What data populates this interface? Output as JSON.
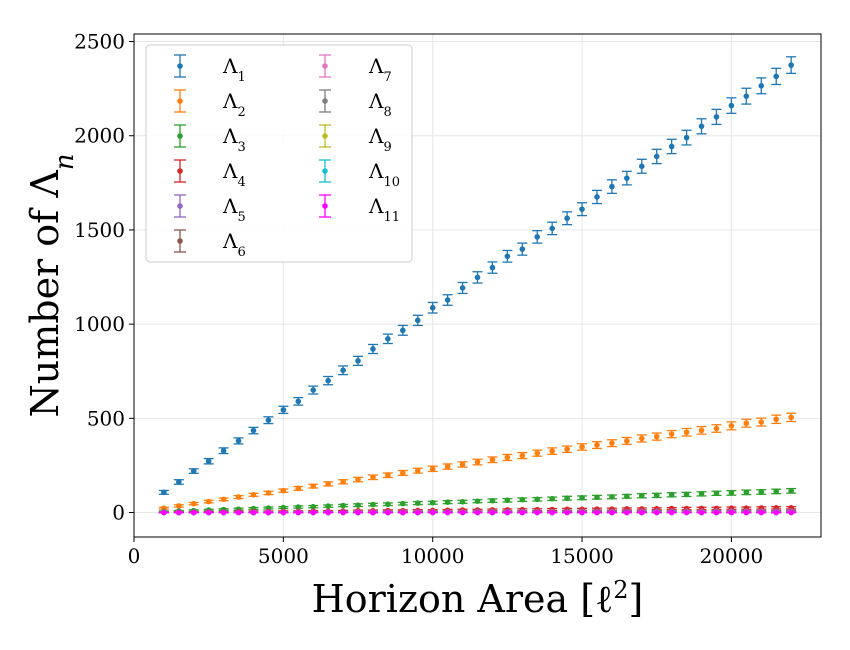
{
  "chart_data": {
    "type": "scatter",
    "xlabel": "Horizon Area [ℓ²]",
    "ylabel": "Number of Λn",
    "xlim": [
      0,
      23000
    ],
    "ylim": [
      -130,
      2540
    ],
    "xticks": [
      "0",
      "5000",
      "10000",
      "15000",
      "20000"
    ],
    "yticks": [
      "0",
      "500",
      "1000",
      "1500",
      "2000",
      "2500"
    ],
    "grid": true,
    "legend_position": "top-left",
    "x": [
      1000,
      1500,
      2000,
      2500,
      3000,
      3500,
      4000,
      4500,
      5000,
      5500,
      6000,
      6500,
      7000,
      7500,
      8000,
      8500,
      9000,
      9500,
      10000,
      10500,
      11000,
      11500,
      12000,
      12500,
      13000,
      13500,
      14000,
      14500,
      15000,
      15500,
      16000,
      16500,
      17000,
      17500,
      18000,
      18500,
      19000,
      19500,
      20000,
      20500,
      21000,
      21500,
      22000
    ],
    "series": [
      {
        "name": "Λ1",
        "color": "#1f77b4",
        "values": [
          107,
          162,
          220,
          272,
          328,
          380,
          435,
          490,
          545,
          590,
          650,
          700,
          755,
          805,
          868,
          922,
          967,
          1020,
          1087,
          1128,
          1192,
          1248,
          1300,
          1360,
          1398,
          1463,
          1508,
          1562,
          1610,
          1675,
          1730,
          1775,
          1838,
          1890,
          1943,
          1990,
          2050,
          2100,
          2160,
          2210,
          2265,
          2315,
          2375
        ],
        "errors": [
          10,
          12,
          12,
          14,
          15,
          16,
          17,
          18,
          19,
          20,
          21,
          22,
          23,
          24,
          24,
          25,
          26,
          27,
          28,
          28,
          29,
          30,
          30,
          31,
          32,
          33,
          33,
          34,
          34,
          35,
          36,
          36,
          37,
          38,
          38,
          39,
          40,
          40,
          41,
          42,
          42,
          43,
          44
        ]
      },
      {
        "name": "Λ2",
        "color": "#ff7f0e",
        "values": [
          23,
          35,
          47,
          58,
          70,
          82,
          94,
          104,
          116,
          128,
          140,
          152,
          163,
          175,
          187,
          198,
          210,
          222,
          232,
          244,
          255,
          268,
          280,
          292,
          302,
          315,
          326,
          336,
          348,
          358,
          368,
          380,
          393,
          403,
          416,
          426,
          436,
          446,
          460,
          474,
          480,
          495,
          505
        ],
        "errors": [
          5,
          6,
          6,
          7,
          7,
          8,
          8,
          9,
          9,
          10,
          10,
          11,
          11,
          12,
          12,
          12,
          13,
          13,
          14,
          14,
          14,
          15,
          15,
          16,
          16,
          16,
          17,
          17,
          17,
          18,
          18,
          18,
          19,
          19,
          19,
          20,
          20,
          20,
          21,
          21,
          21,
          22,
          22
        ]
      },
      {
        "name": "Λ3",
        "color": "#2ca02c",
        "values": [
          5,
          8,
          10,
          13,
          16,
          18,
          21,
          24,
          26,
          29,
          31,
          34,
          37,
          39,
          42,
          44,
          47,
          50,
          52,
          55,
          57,
          60,
          63,
          65,
          68,
          70,
          73,
          76,
          78,
          81,
          83,
          86,
          89,
          91,
          94,
          96,
          99,
          102,
          104,
          107,
          109,
          112,
          115
        ],
        "errors": [
          3,
          3,
          4,
          4,
          4,
          5,
          5,
          5,
          5,
          6,
          6,
          6,
          6,
          7,
          7,
          7,
          7,
          8,
          8,
          8,
          8,
          8,
          9,
          9,
          9,
          9,
          9,
          10,
          10,
          10,
          10,
          10,
          11,
          11,
          11,
          11,
          11,
          11,
          12,
          12,
          12,
          12,
          12
        ]
      },
      {
        "name": "Λ4",
        "color": "#d62728",
        "values": [
          1,
          2,
          2,
          3,
          3,
          4,
          5,
          5,
          6,
          6,
          7,
          7,
          8,
          9,
          9,
          10,
          10,
          11,
          11,
          12,
          13,
          13,
          14,
          14,
          15,
          15,
          16,
          17,
          17,
          18,
          18,
          19,
          19,
          20,
          21,
          21,
          22,
          22,
          23,
          23,
          24,
          25,
          25
        ],
        "errors": [
          2,
          2,
          2,
          2,
          2,
          3,
          3,
          3,
          3,
          3,
          3,
          3,
          3,
          4,
          4,
          4,
          4,
          4,
          4,
          4,
          4,
          4,
          4,
          5,
          5,
          5,
          5,
          5,
          5,
          5,
          5,
          5,
          5,
          5,
          5,
          6,
          6,
          6,
          6,
          6,
          6,
          6,
          6
        ]
      },
      {
        "name": "Λ5",
        "color": "#9467bd",
        "values": [
          0,
          1,
          1,
          1,
          1,
          1,
          2,
          2,
          2,
          2,
          2,
          3,
          3,
          3,
          3,
          3,
          4,
          4,
          4,
          4,
          4,
          5,
          5,
          5,
          5,
          5,
          5,
          6,
          6,
          6,
          6,
          6,
          7,
          7,
          7,
          7,
          7,
          8,
          8,
          8,
          8,
          8,
          9
        ],
        "errors": [
          1,
          1,
          1,
          1,
          1,
          1,
          2,
          2,
          2,
          2,
          2,
          2,
          2,
          2,
          2,
          2,
          2,
          2,
          2,
          2,
          2,
          2,
          2,
          2,
          2,
          2,
          2,
          3,
          3,
          3,
          3,
          3,
          3,
          3,
          3,
          3,
          3,
          3,
          3,
          3,
          3,
          3,
          3
        ]
      },
      {
        "name": "Λ6",
        "color": "#8c564b",
        "values": [
          0,
          0,
          0,
          0,
          1,
          1,
          1,
          1,
          1,
          1,
          1,
          1,
          1,
          1,
          1,
          2,
          2,
          2,
          2,
          2,
          2,
          2,
          2,
          2,
          2,
          2,
          2,
          3,
          3,
          3,
          3,
          3,
          3,
          3,
          3,
          3,
          3,
          3,
          3,
          4,
          4,
          4,
          4
        ],
        "errors": [
          1,
          1,
          1,
          1,
          1,
          1,
          1,
          1,
          1,
          1,
          1,
          1,
          1,
          1,
          1,
          1,
          1,
          1,
          1,
          1,
          1,
          1,
          1,
          1,
          1,
          1,
          1,
          2,
          2,
          2,
          2,
          2,
          2,
          2,
          2,
          2,
          2,
          2,
          2,
          2,
          2,
          2,
          2
        ]
      },
      {
        "name": "Λ7",
        "color": "#e377c2",
        "values": [
          0,
          0,
          0,
          0,
          0,
          0,
          0,
          0,
          0,
          1,
          1,
          1,
          1,
          1,
          1,
          1,
          1,
          1,
          1,
          1,
          1,
          1,
          1,
          1,
          1,
          1,
          1,
          1,
          1,
          1,
          1,
          1,
          1,
          2,
          2,
          2,
          2,
          2,
          2,
          2,
          2,
          2,
          2
        ],
        "errors": [
          1,
          1,
          1,
          1,
          1,
          1,
          1,
          1,
          1,
          1,
          1,
          1,
          1,
          1,
          1,
          1,
          1,
          1,
          1,
          1,
          1,
          1,
          1,
          1,
          1,
          1,
          1,
          1,
          1,
          1,
          1,
          1,
          1,
          1,
          1,
          1,
          1,
          1,
          1,
          1,
          1,
          1,
          1
        ]
      },
      {
        "name": "Λ8",
        "color": "#7f7f7f",
        "values": [
          0,
          0,
          0,
          0,
          0,
          0,
          0,
          0,
          0,
          0,
          0,
          0,
          0,
          0,
          0,
          0,
          0,
          0,
          0,
          1,
          1,
          1,
          1,
          1,
          1,
          1,
          1,
          1,
          1,
          1,
          1,
          1,
          1,
          1,
          1,
          1,
          1,
          1,
          1,
          1,
          1,
          1,
          1
        ],
        "errors": [
          1,
          1,
          1,
          1,
          1,
          1,
          1,
          1,
          1,
          1,
          1,
          1,
          1,
          1,
          1,
          1,
          1,
          1,
          1,
          1,
          1,
          1,
          1,
          1,
          1,
          1,
          1,
          1,
          1,
          1,
          1,
          1,
          1,
          1,
          1,
          1,
          1,
          1,
          1,
          1,
          1,
          1,
          1
        ]
      },
      {
        "name": "Λ9",
        "color": "#bcbd22",
        "values": [
          0,
          0,
          0,
          0,
          0,
          0,
          0,
          0,
          0,
          0,
          0,
          0,
          0,
          0,
          0,
          0,
          0,
          0,
          0,
          0,
          0,
          0,
          0,
          0,
          0,
          0,
          0,
          0,
          0,
          0,
          0,
          0,
          0,
          0,
          0,
          0,
          0,
          0,
          0,
          0,
          0,
          0,
          0
        ],
        "errors": [
          1,
          1,
          1,
          1,
          1,
          1,
          1,
          1,
          1,
          1,
          1,
          1,
          1,
          1,
          1,
          1,
          1,
          1,
          1,
          1,
          1,
          1,
          1,
          1,
          1,
          1,
          1,
          1,
          1,
          1,
          1,
          1,
          1,
          1,
          1,
          1,
          1,
          1,
          1,
          1,
          1,
          1,
          1
        ]
      },
      {
        "name": "Λ10",
        "color": "#17becf",
        "values": [
          0,
          0,
          0,
          0,
          0,
          0,
          0,
          0,
          0,
          0,
          0,
          0,
          0,
          0,
          0,
          0,
          0,
          0,
          0,
          0,
          0,
          0,
          0,
          0,
          0,
          0,
          0,
          0,
          0,
          0,
          0,
          0,
          0,
          0,
          0,
          0,
          0,
          0,
          0,
          0,
          0,
          0,
          0
        ],
        "errors": [
          1,
          1,
          1,
          1,
          1,
          1,
          1,
          1,
          1,
          1,
          1,
          1,
          1,
          1,
          1,
          1,
          1,
          1,
          1,
          1,
          1,
          1,
          1,
          1,
          1,
          1,
          1,
          1,
          1,
          1,
          1,
          1,
          1,
          1,
          1,
          1,
          1,
          1,
          1,
          1,
          1,
          1,
          1
        ]
      },
      {
        "name": "Λ11",
        "color": "#ff00ff",
        "values": [
          0,
          0,
          0,
          0,
          0,
          0,
          0,
          0,
          0,
          0,
          0,
          0,
          0,
          0,
          0,
          0,
          0,
          0,
          0,
          0,
          0,
          0,
          0,
          0,
          0,
          0,
          0,
          0,
          0,
          0,
          0,
          0,
          0,
          0,
          0,
          0,
          0,
          0,
          0,
          0,
          0,
          0,
          0
        ],
        "errors": [
          1,
          1,
          1,
          1,
          1,
          1,
          1,
          1,
          1,
          1,
          1,
          1,
          1,
          1,
          1,
          1,
          1,
          1,
          1,
          1,
          1,
          1,
          1,
          1,
          1,
          1,
          1,
          1,
          1,
          1,
          1,
          1,
          1,
          1,
          1,
          1,
          1,
          1,
          1,
          1,
          1,
          1,
          1
        ]
      }
    ]
  }
}
